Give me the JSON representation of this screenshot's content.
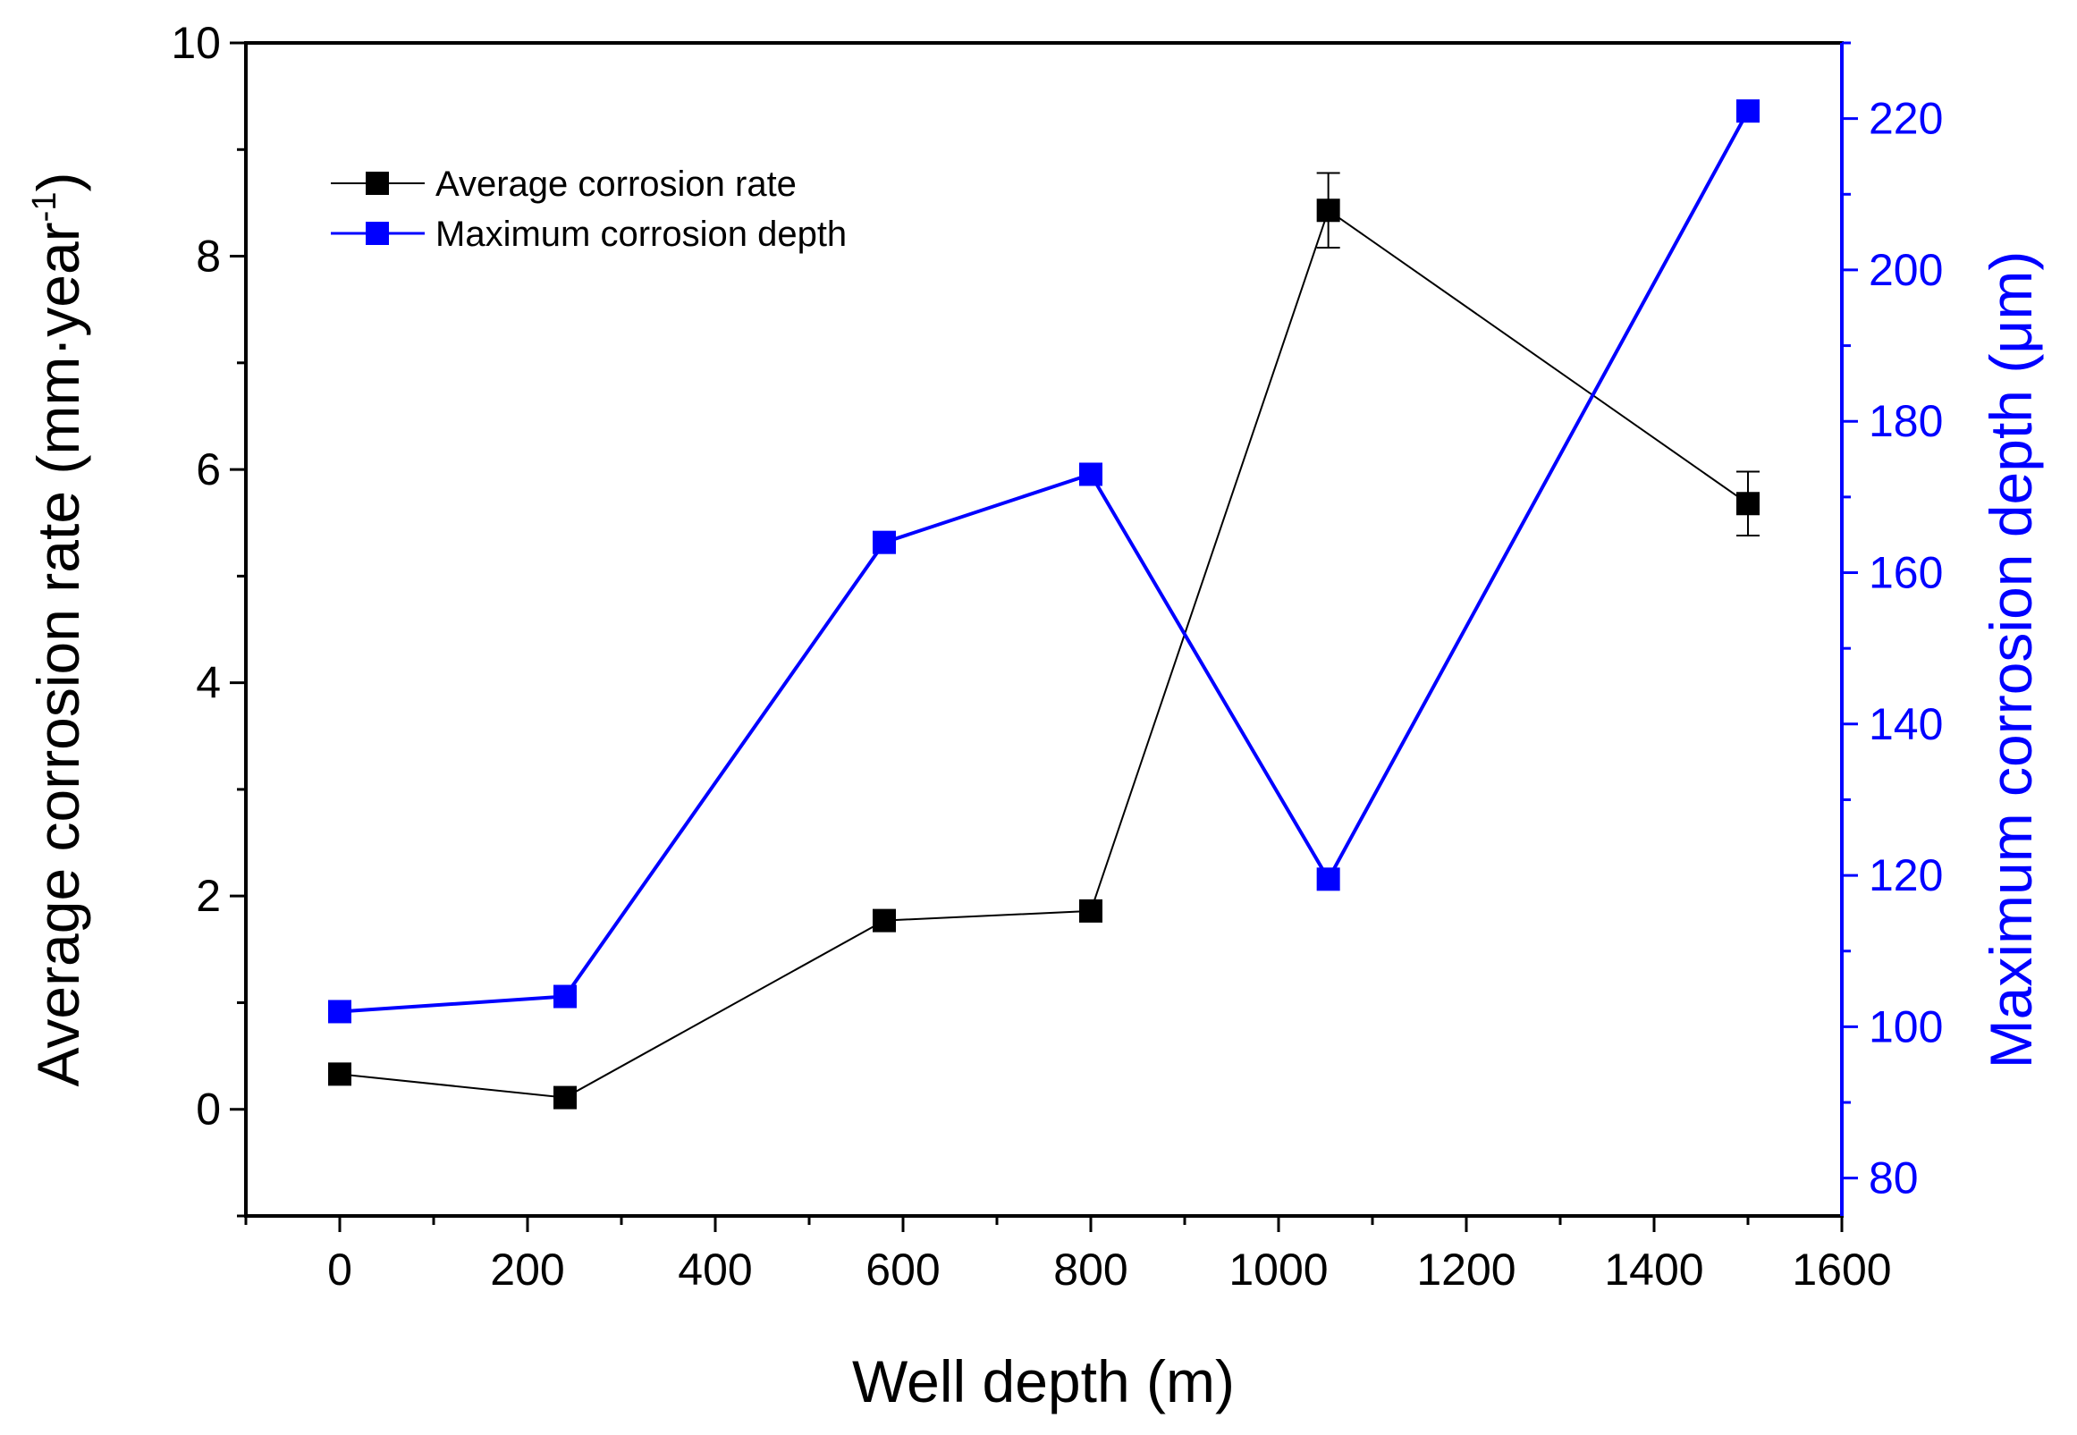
{
  "chart_data": {
    "type": "line",
    "xlabel": "Well depth (m)",
    "ylabel_left": {
      "prefix": "Average corrosion rate (mm·year",
      "superscript": "-1",
      "suffix": ")"
    },
    "ylabel_right": "Maximum corrosion depth (μm)",
    "xlim": [
      -100,
      1600
    ],
    "ylim_left": [
      -1,
      10
    ],
    "ylim_right": [
      75,
      230
    ],
    "x_ticks": [
      0,
      200,
      400,
      600,
      800,
      1000,
      1200,
      1400,
      1600
    ],
    "y_left_ticks": [
      0,
      2,
      4,
      6,
      8,
      10
    ],
    "y_right_ticks": [
      80,
      100,
      120,
      140,
      160,
      180,
      200,
      220
    ],
    "legend_position": "top-left",
    "series": [
      {
        "name": "Average corrosion rate",
        "axis": "left",
        "color": "#000000",
        "marker": "square",
        "x": [
          0,
          240,
          580,
          800,
          1053,
          1500
        ],
        "y": [
          0.33,
          0.11,
          1.77,
          1.86,
          8.43,
          5.68
        ],
        "error": [
          0,
          0,
          0,
          0,
          0.35,
          0.3
        ]
      },
      {
        "name": "Maximum corrosion depth",
        "axis": "right",
        "color": "#0000ff",
        "marker": "square",
        "x": [
          0,
          240,
          580,
          800,
          1053,
          1500
        ],
        "y": [
          102,
          104,
          164,
          173,
          119.5,
          221
        ]
      }
    ]
  }
}
